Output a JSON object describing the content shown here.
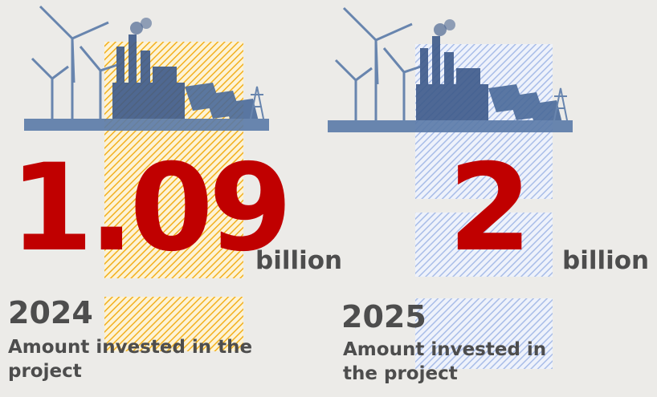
{
  "panels": [
    {
      "value": "1.09",
      "unit": "billion",
      "year": "2024",
      "caption": "Amount invested in the project"
    },
    {
      "value": "2",
      "unit": "billion",
      "year": "2025",
      "caption": "Amount invested in the project"
    }
  ]
}
